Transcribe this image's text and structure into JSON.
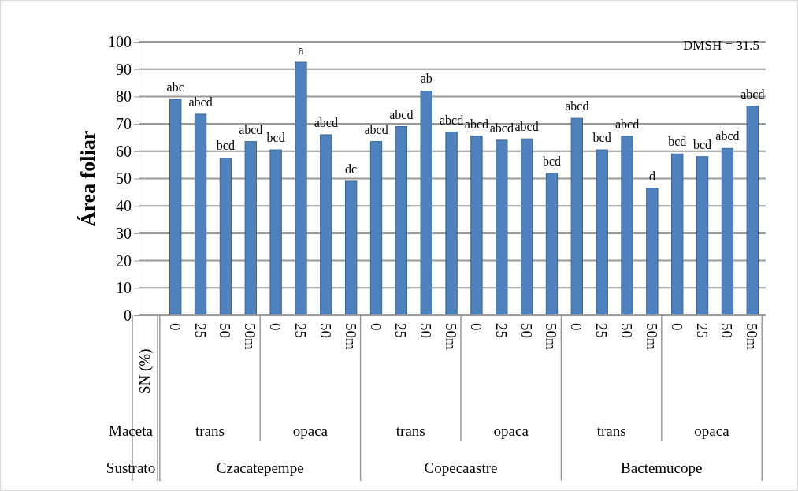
{
  "chart_data": {
    "type": "bar",
    "ylabel": "Área foliar",
    "categories": [
      "0",
      "25",
      "50",
      "50m",
      "0",
      "25",
      "50",
      "50m",
      "0",
      "25",
      "50",
      "50m",
      "0",
      "25",
      "50",
      "50m",
      "0",
      "25",
      "50",
      "50m",
      "0",
      "25",
      "50",
      "50m"
    ],
    "values": [
      79,
      73.5,
      57.5,
      63.5,
      60.5,
      92.5,
      66,
      49,
      63.5,
      69,
      82,
      67,
      65.5,
      64,
      64.5,
      52,
      72,
      60.5,
      65.5,
      46.5,
      59,
      58,
      61,
      76.5
    ],
    "value_labels": [
      "abc",
      "abcd",
      "bcd",
      "abcd",
      "bcd",
      "a",
      "abcd",
      "dc",
      "abcd",
      "abcd",
      "ab",
      "abcd",
      "abcd",
      "abcd",
      "abcd",
      "bcd",
      "abcd",
      "bcd",
      "abcd",
      "d",
      "bcd",
      "bcd",
      "abcd",
      "abcd"
    ],
    "color": "#4f81bd",
    "ylim": [
      0,
      100
    ],
    "yticks": [
      0,
      10,
      20,
      30,
      40,
      50,
      60,
      70,
      80,
      90,
      100
    ],
    "grid": "y",
    "annotations": [
      "DMSH = 31.5",
      "SN  (%)",
      "Maceta",
      "trans",
      "opaca",
      "trans",
      "opaca",
      "trans",
      "opaca",
      "Sustrato",
      "Czacatepempe",
      "Copecaastre",
      "Bactemucope"
    ]
  }
}
